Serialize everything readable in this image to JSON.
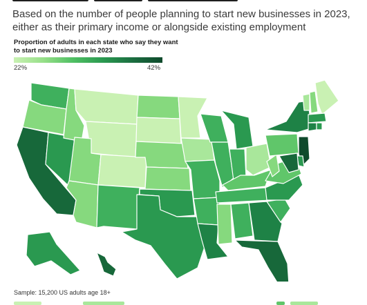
{
  "subtitle": "Based on the number of people planning to start new businesses in 2023, either as their primary income or alongside existing employment",
  "legend": {
    "title": "Proportion of adults in each state who say they want to start new businesses in 2023",
    "min_label": "22%",
    "max_label": "42%",
    "min_color": "#c9f1b3",
    "max_color": "#0f4a2c"
  },
  "source": "Sample: 15,200 US adults age 18+",
  "colors": {
    "c1": "#c9f1b3",
    "c2": "#a9e79b",
    "c3": "#86d97e",
    "c4": "#60c66a",
    "c5": "#3fb05d",
    "c6": "#2a9950",
    "c7": "#1e8246",
    "c8": "#17683a",
    "c9": "#0f4a2c",
    "border": "#ffffff"
  },
  "states": [
    {
      "code": "WA",
      "level": "c5"
    },
    {
      "code": "OR",
      "level": "c3"
    },
    {
      "code": "CA",
      "level": "c8"
    },
    {
      "code": "NV",
      "level": "c6"
    },
    {
      "code": "ID",
      "level": "c3"
    },
    {
      "code": "MT",
      "level": "c1"
    },
    {
      "code": "WY",
      "level": "c1"
    },
    {
      "code": "UT",
      "level": "c3"
    },
    {
      "code": "AZ",
      "level": "c3"
    },
    {
      "code": "CO",
      "level": "c1"
    },
    {
      "code": "NM",
      "level": "c5"
    },
    {
      "code": "ND",
      "level": "c3"
    },
    {
      "code": "SD",
      "level": "c1"
    },
    {
      "code": "NE",
      "level": "c3"
    },
    {
      "code": "KS",
      "level": "c3"
    },
    {
      "code": "OK",
      "level": "c6"
    },
    {
      "code": "TX",
      "level": "c6"
    },
    {
      "code": "MN",
      "level": "c1"
    },
    {
      "code": "IA",
      "level": "c2"
    },
    {
      "code": "MO",
      "level": "c5"
    },
    {
      "code": "AR",
      "level": "c5"
    },
    {
      "code": "LA",
      "level": "c7"
    },
    {
      "code": "WI",
      "level": "c5"
    },
    {
      "code": "IL",
      "level": "c5"
    },
    {
      "code": "MI",
      "level": "c6"
    },
    {
      "code": "IN",
      "level": "c5"
    },
    {
      "code": "OH",
      "level": "c2"
    },
    {
      "code": "KY",
      "level": "c4"
    },
    {
      "code": "TN",
      "level": "c5"
    },
    {
      "code": "MS",
      "level": "c3"
    },
    {
      "code": "AL",
      "level": "c5"
    },
    {
      "code": "GA",
      "level": "c7"
    },
    {
      "code": "FL",
      "level": "c8"
    },
    {
      "code": "SC",
      "level": "c5"
    },
    {
      "code": "NC",
      "level": "c6"
    },
    {
      "code": "VA",
      "level": "c4"
    },
    {
      "code": "WV",
      "level": "c3"
    },
    {
      "code": "PA",
      "level": "c4"
    },
    {
      "code": "NY",
      "level": "c7"
    },
    {
      "code": "VT",
      "level": "c2"
    },
    {
      "code": "NH",
      "level": "c3"
    },
    {
      "code": "ME",
      "level": "c1"
    },
    {
      "code": "MA",
      "level": "c6"
    },
    {
      "code": "CT",
      "level": "c7"
    },
    {
      "code": "RI",
      "level": "c6"
    },
    {
      "code": "NJ",
      "level": "c9"
    },
    {
      "code": "DE",
      "level": "c6"
    },
    {
      "code": "MD",
      "level": "c8"
    },
    {
      "code": "AK",
      "level": "c6"
    },
    {
      "code": "HI",
      "level": "c8"
    }
  ]
}
